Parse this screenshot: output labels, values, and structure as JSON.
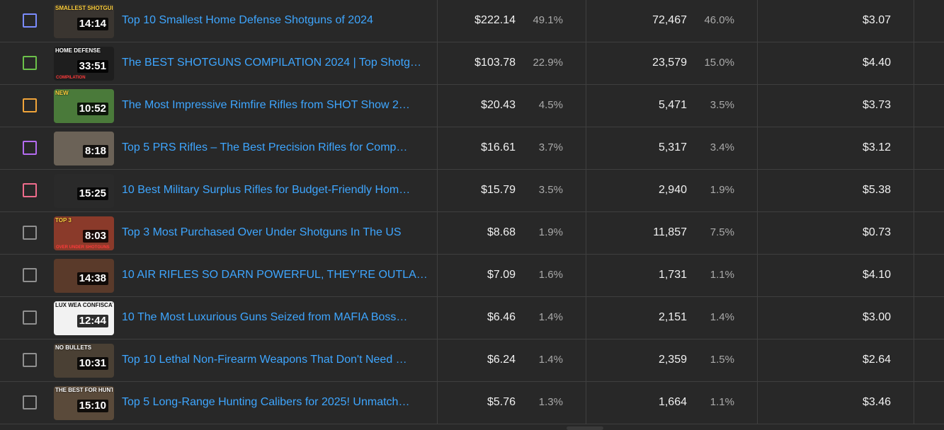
{
  "rows": [
    {
      "title": "Top 10 Smallest Home Defense Shotguns of 2024",
      "duration": "14:14",
      "revenue": "$222.14",
      "revenue_pct": "49.1%",
      "views": "72,467",
      "views_pct": "46.0%",
      "rpm": "$3.07",
      "checkbox_color": "#7b8cff",
      "thumb_caption": "SMALLEST SHOTGUN",
      "thumb_sub": "",
      "thumb_bg": "#3a3530"
    },
    {
      "title": "The BEST SHOTGUNS COMPILATION 2024 | Top Shotg…",
      "duration": "33:51",
      "revenue": "$103.78",
      "revenue_pct": "22.9%",
      "views": "23,579",
      "views_pct": "15.0%",
      "rpm": "$4.40",
      "checkbox_color": "#6cc14a",
      "thumb_caption": "HOME DEFENSE",
      "thumb_sub": "COMPILATION",
      "thumb_bg": "#1e1e1e"
    },
    {
      "title": "The Most Impressive Rimfire Rifles from SHOT Show 2…",
      "duration": "10:52",
      "revenue": "$20.43",
      "revenue_pct": "4.5%",
      "views": "5,471",
      "views_pct": "3.5%",
      "rpm": "$3.73",
      "checkbox_color": "#f0a43a",
      "thumb_caption": "NEW",
      "thumb_sub": "",
      "thumb_bg": "#4a7a3a"
    },
    {
      "title": "Top 5 PRS Rifles – The Best Precision Rifles for Comp…",
      "duration": "8:18",
      "revenue": "$16.61",
      "revenue_pct": "3.7%",
      "views": "5,317",
      "views_pct": "3.4%",
      "rpm": "$3.12",
      "checkbox_color": "#b46cf0",
      "thumb_caption": "",
      "thumb_sub": "",
      "thumb_bg": "#6b6257"
    },
    {
      "title": "10 Best Military Surplus Rifles for Budget-Friendly Hom…",
      "duration": "15:25",
      "revenue": "$15.79",
      "revenue_pct": "3.5%",
      "views": "2,940",
      "views_pct": "1.9%",
      "rpm": "$5.38",
      "checkbox_color": "#f06c8c",
      "thumb_caption": "",
      "thumb_sub": "",
      "thumb_bg": "#2a2a2a"
    },
    {
      "title": "Top 3 Most Purchased Over Under Shotguns In The US",
      "duration": "8:03",
      "revenue": "$8.68",
      "revenue_pct": "1.9%",
      "views": "11,857",
      "views_pct": "7.5%",
      "rpm": "$0.73",
      "checkbox_color": "#909090",
      "thumb_caption": "TOP 3",
      "thumb_sub": "OVER UNDER SHOTGUNS",
      "thumb_bg": "#8a3a2a"
    },
    {
      "title": "10 AIR RIFLES SO DARN POWERFUL, THEY’RE OUTLA…",
      "duration": "14:38",
      "revenue": "$7.09",
      "revenue_pct": "1.6%",
      "views": "1,731",
      "views_pct": "1.1%",
      "rpm": "$4.10",
      "checkbox_color": "#909090",
      "thumb_caption": "",
      "thumb_sub": "",
      "thumb_bg": "#5a3a2a"
    },
    {
      "title": "10 The Most Luxurious Guns Seized from MAFIA Boss…",
      "duration": "12:44",
      "revenue": "$6.46",
      "revenue_pct": "1.4%",
      "views": "2,151",
      "views_pct": "1.4%",
      "rpm": "$3.00",
      "checkbox_color": "#909090",
      "thumb_caption": "LUX WEA CONFISCATED",
      "thumb_sub": "",
      "thumb_bg": "#f2f2f2"
    },
    {
      "title": "Top 10 Lethal Non-Firearm Weapons That Don't Need …",
      "duration": "10:31",
      "revenue": "$6.24",
      "revenue_pct": "1.4%",
      "views": "2,359",
      "views_pct": "1.5%",
      "rpm": "$2.64",
      "checkbox_color": "#909090",
      "thumb_caption": "NO BULLETS",
      "thumb_sub": "",
      "thumb_bg": "#4a4034"
    },
    {
      "title": "Top 5 Long-Range Hunting Calibers for 2025! Unmatch…",
      "duration": "15:10",
      "revenue": "$5.76",
      "revenue_pct": "1.3%",
      "views": "1,664",
      "views_pct": "1.1%",
      "rpm": "$3.46",
      "checkbox_color": "#909090",
      "thumb_caption": "THE BEST FOR HUNTER",
      "thumb_sub": "",
      "thumb_bg": "#5a4a3a"
    }
  ]
}
